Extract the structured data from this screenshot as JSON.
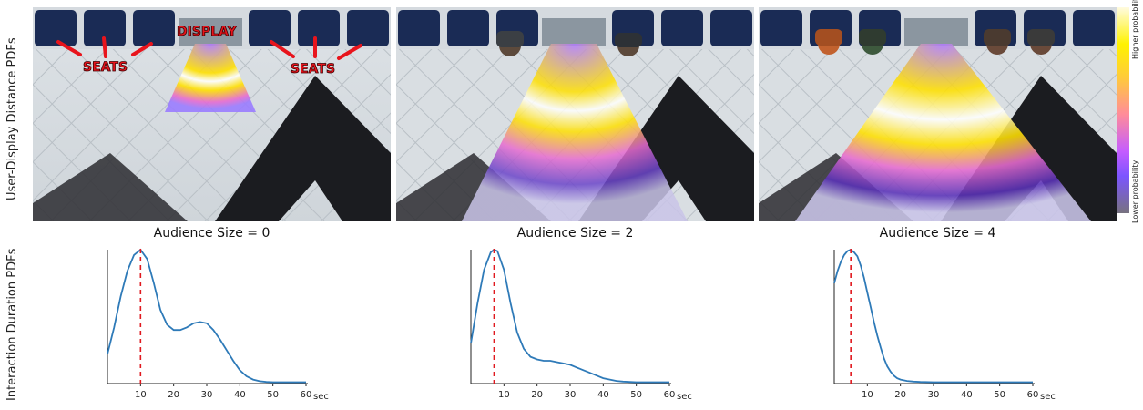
{
  "row_labels": {
    "top": "User-Display Distance PDFs",
    "bottom": "Interaction Duration PDFs"
  },
  "colorbar": {
    "high": "Higher probability",
    "low": "Lower probability"
  },
  "annotations": {
    "seats_left": "SEATS",
    "display": "DISPLAY",
    "seats_right": "SEATS"
  },
  "colors": {
    "curve": "#2e7ab8",
    "peak_line": "#e0191f",
    "annotation": "#e8141c"
  },
  "chart_data": [
    {
      "type": "line",
      "title": "Audience Size = 0",
      "xunit": "sec",
      "xticks": [
        10,
        20,
        30,
        40,
        50,
        60
      ],
      "xlim": [
        0,
        60
      ],
      "peak_x": 10,
      "x": [
        0,
        2,
        4,
        6,
        8,
        10,
        12,
        14,
        16,
        18,
        20,
        22,
        24,
        26,
        28,
        30,
        32,
        34,
        36,
        38,
        40,
        42,
        44,
        46,
        48,
        50,
        52,
        54,
        56,
        58,
        60
      ],
      "y": [
        0.22,
        0.42,
        0.65,
        0.84,
        0.96,
        1.0,
        0.93,
        0.75,
        0.55,
        0.44,
        0.4,
        0.4,
        0.42,
        0.45,
        0.46,
        0.45,
        0.4,
        0.33,
        0.25,
        0.17,
        0.1,
        0.055,
        0.03,
        0.018,
        0.012,
        0.01,
        0.01,
        0.01,
        0.01,
        0.01,
        0.01
      ]
    },
    {
      "type": "line",
      "title": "Audience Size = 2",
      "xunit": "sec",
      "xticks": [
        10,
        20,
        30,
        40,
        50,
        60
      ],
      "xlim": [
        0,
        60
      ],
      "peak_x": 7,
      "x": [
        0,
        2,
        4,
        6,
        7,
        8,
        10,
        12,
        14,
        16,
        18,
        20,
        22,
        24,
        26,
        28,
        30,
        32,
        34,
        36,
        38,
        40,
        42,
        44,
        46,
        48,
        50,
        52,
        54,
        56,
        58,
        60
      ],
      "y": [
        0.3,
        0.6,
        0.85,
        0.98,
        1.0,
        0.99,
        0.85,
        0.6,
        0.38,
        0.26,
        0.2,
        0.18,
        0.17,
        0.17,
        0.16,
        0.15,
        0.14,
        0.12,
        0.1,
        0.08,
        0.06,
        0.04,
        0.03,
        0.02,
        0.015,
        0.012,
        0.01,
        0.01,
        0.01,
        0.01,
        0.01,
        0.01
      ]
    },
    {
      "type": "line",
      "title": "Audience Size = 4",
      "xunit": "sec",
      "xticks": [
        10,
        20,
        30,
        40,
        50,
        60
      ],
      "xlim": [
        0,
        60
      ],
      "peak_x": 5,
      "x": [
        0,
        1,
        2,
        3,
        4,
        5,
        6,
        7,
        8,
        9,
        10,
        11,
        12,
        13,
        14,
        15,
        16,
        17,
        18,
        19,
        20,
        22,
        24,
        26,
        30,
        40,
        50,
        60
      ],
      "y": [
        0.75,
        0.84,
        0.91,
        0.96,
        0.99,
        1.0,
        0.98,
        0.95,
        0.88,
        0.79,
        0.68,
        0.57,
        0.46,
        0.36,
        0.27,
        0.19,
        0.13,
        0.09,
        0.06,
        0.04,
        0.03,
        0.02,
        0.015,
        0.012,
        0.01,
        0.01,
        0.01,
        0.01
      ]
    }
  ]
}
